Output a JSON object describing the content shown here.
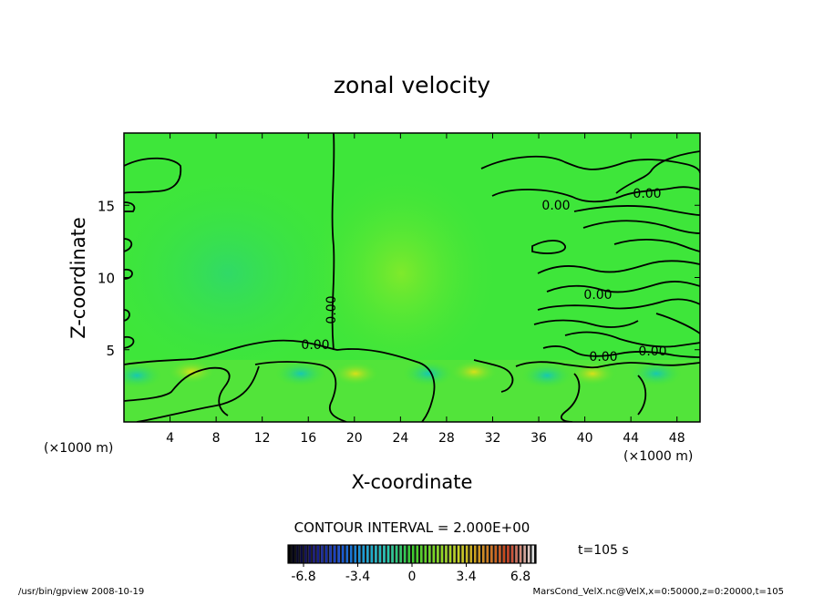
{
  "chart_data": {
    "type": "heatmap",
    "title": "zonal velocity",
    "xlabel": "X-coordinate",
    "ylabel": "Z-coordinate",
    "x_unit": "(×1000 m)",
    "y_unit": "(×1000 m)",
    "xlim": [
      0,
      50
    ],
    "ylim": [
      0,
      20
    ],
    "x_ticks": [
      4,
      8,
      12,
      16,
      20,
      24,
      28,
      32,
      36,
      40,
      44,
      48
    ],
    "y_ticks": [
      5,
      10,
      15
    ],
    "contour_interval_text": "CONTOUR INTERVAL = 2.000E+00",
    "time_text": "t=105 s",
    "contour_labels": [
      "0.00",
      "0.00",
      "0.00",
      "0.00",
      "0.00",
      "0.00",
      "0.00"
    ],
    "colorbar": {
      "tick_labels": [
        "-6.8",
        "-3.4",
        "0",
        "3.4",
        "6.8"
      ],
      "range": [
        -6.8,
        6.8
      ],
      "colors": [
        "#000000",
        "#12127a",
        "#1a4ad0",
        "#1a9ad8",
        "#22c8b4",
        "#3aca30",
        "#7cd820",
        "#c8d020",
        "#d08820",
        "#c83a1a",
        "#e0e0e0"
      ]
    },
    "colors": {
      "background_green": "#3ee63a",
      "light_green": "#60ee40",
      "cyan_green": "#2cd87a",
      "contour": "#000000"
    }
  },
  "footer": {
    "left": "/usr/bin/gpview   2008-10-19",
    "right": "MarsCond_VelX.nc@VelX,x=0:50000,z=0:20000,t=105"
  }
}
